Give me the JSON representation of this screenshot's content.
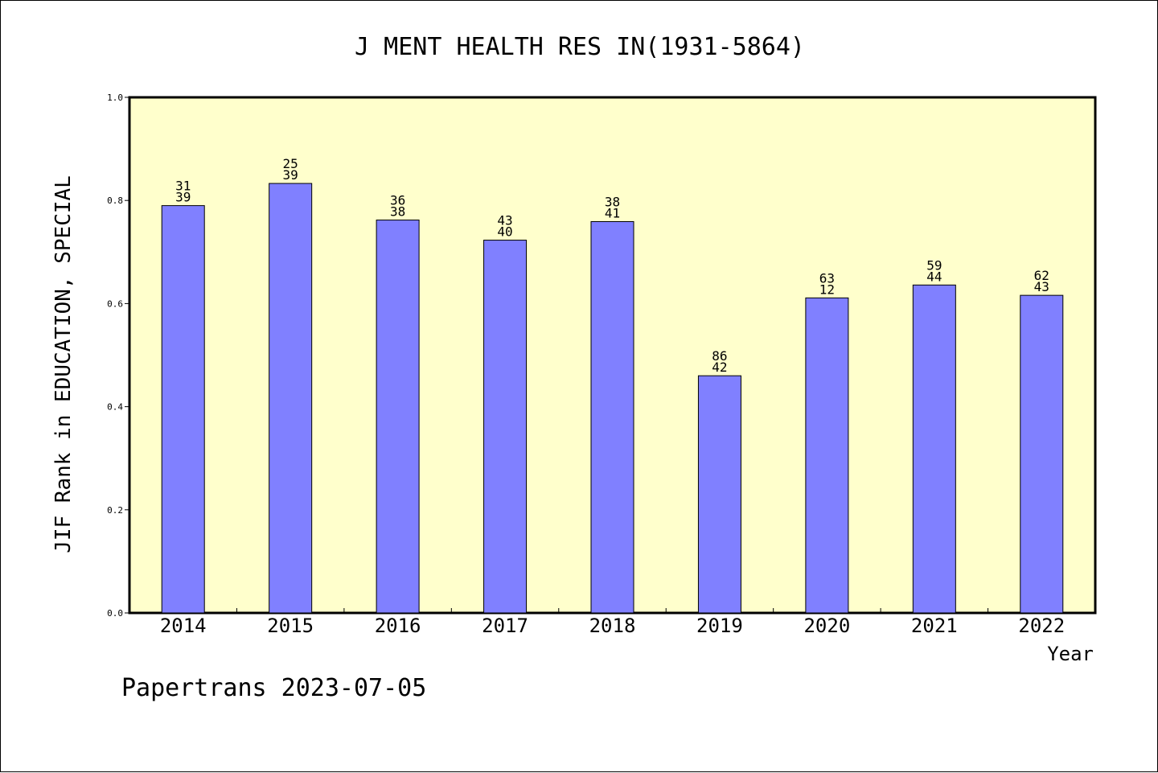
{
  "chart_data": {
    "type": "bar",
    "title": "J MENT HEALTH RES IN(1931-5864)",
    "ylabel": "JIF Rank in EDUCATION, SPECIAL",
    "xlabel": "Year",
    "categories": [
      "2014",
      "2015",
      "2016",
      "2017",
      "2018",
      "2019",
      "2020",
      "2021",
      "2022"
    ],
    "values": [
      0.79,
      0.833,
      0.762,
      0.723,
      0.759,
      0.46,
      0.611,
      0.636,
      0.616
    ],
    "label_top": [
      "31",
      "25",
      "36",
      "43",
      "38",
      "86",
      "63",
      "59",
      "62"
    ],
    "label_bottom": [
      "39",
      "39",
      "38",
      "40",
      "41",
      "42",
      "12",
      "44",
      "43"
    ],
    "ylim": [
      0,
      1
    ],
    "yticks": [
      "0.0",
      "0.2",
      "0.4",
      "0.6",
      "0.8",
      "1.0"
    ],
    "grid": false,
    "colors": {
      "bar": "#8080ff",
      "plot_background": "#ffffcc"
    }
  },
  "footer": "Papertrans 2023-07-05"
}
